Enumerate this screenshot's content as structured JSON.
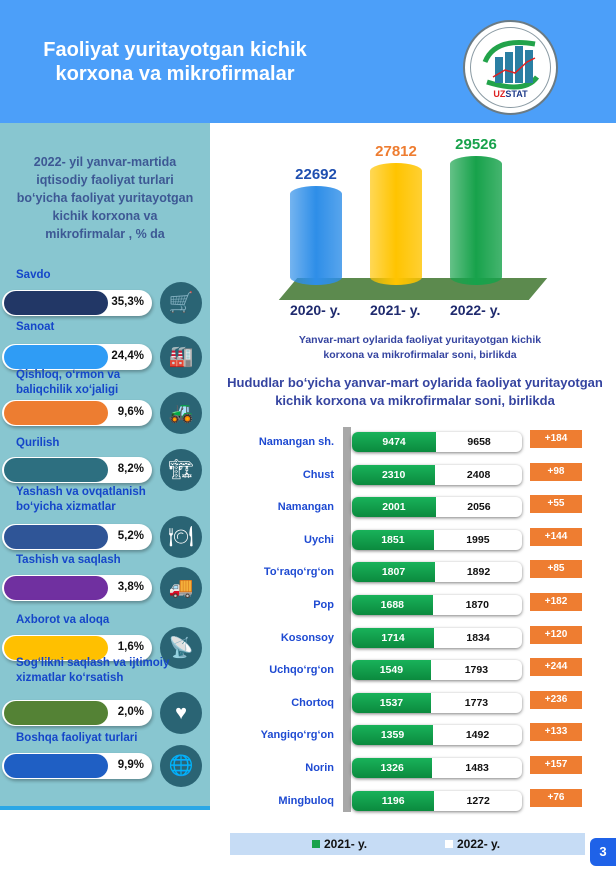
{
  "header": {
    "title": "Faoliyat  yuritayotgan kichik korxona va mikrofirmalar",
    "logo_top": "NAMANGAN VILOYATI",
    "logo_brand": "UZSTAT",
    "logo_bottom": "STATISTIKA BOSHQARMASI"
  },
  "left": {
    "title": "2022- yil yanvar-martida iqtisodiy faoliyat turlari bo‘yicha faoliyat yuritayotgan kichik korxona va mikrofirmalar , % da",
    "items": [
      {
        "label": "Savdo",
        "value": "35,3%",
        "color": "#223766",
        "icon": "shopping-cart-icon",
        "glyph": "🛒"
      },
      {
        "label": "Sanoat",
        "value": "24,4%",
        "color": "#2f9cf5",
        "icon": "factory-icon",
        "glyph": "🏭"
      },
      {
        "label": "Qishloq, o‘rmon va baliqchilik xo‘jaligi",
        "value": "9,6%",
        "color": "#ed7d31",
        "icon": "tractor-icon",
        "glyph": "🚜"
      },
      {
        "label": "Qurilish",
        "value": "8,2%",
        "color": "#2d6f80",
        "icon": "crane-building-icon",
        "glyph": "🏗"
      },
      {
        "label": "Yashash va ovqatlanish bo‘yicha xizmatlar",
        "value": "5,2%",
        "color": "#2f5597",
        "icon": "plate-cutlery-icon",
        "glyph": "🍽"
      },
      {
        "label": "Tashish va saqlash",
        "value": "3,8%",
        "color": "#7030a0",
        "icon": "delivery-truck-icon",
        "glyph": "🚚"
      },
      {
        "label": "Axborot va aloqa",
        "value": "1,6%",
        "color": "#ffc000",
        "icon": "antenna-tower-icon",
        "glyph": "📡"
      },
      {
        "label": "Sog‘likni saqlash va ijtimoiy xizmatlar ko‘rsatish",
        "value": "2,0%",
        "color": "#548235",
        "icon": "heart-medical-icon",
        "glyph": "♥"
      },
      {
        "label": "Boshqa faoliyat turlari",
        "value": "9,9%",
        "color": "#1f5fc4",
        "icon": "globe-arrow-icon",
        "glyph": "🌐"
      }
    ]
  },
  "chart_data": [
    {
      "type": "bar",
      "title": "Yanvar-mart oylarida faoliyat yuritayotgan kichik korxona va mikrofirmalar soni, birlikda",
      "categories": [
        "2020- y.",
        "2021- y.",
        "2022- y."
      ],
      "values": [
        22692,
        27812,
        29526
      ],
      "labels": [
        "22692",
        "27812",
        "29526"
      ],
      "colors": [
        "#2e8ee8",
        "#ffc400",
        "#17a24b"
      ],
      "label_colors": [
        "#1f4fb0",
        "#ee7d31",
        "#17a24b"
      ]
    },
    {
      "type": "bar",
      "orientation": "horizontal",
      "stacked": true,
      "title": "Hududlar bo‘yicha yanvar-mart oylarida faoliyat yuritayotgan kichik korxona va mikrofirmalar soni, birlikda",
      "categories": [
        "Namangan sh.",
        "Chust",
        "Namangan",
        "Uychi",
        "To‘raqo‘rg‘on",
        "Pop",
        "Kosonsoy",
        "Uchqo‘rg‘on",
        "Chortoq",
        "Yangiqo‘rg‘on",
        "Norin",
        "Mingbuloq"
      ],
      "series": [
        {
          "name": "2021- y.",
          "values": [
            9474,
            2310,
            2001,
            1851,
            1807,
            1688,
            1714,
            1549,
            1537,
            1359,
            1326,
            1196
          ]
        },
        {
          "name": "2022- y.",
          "values": [
            9658,
            2408,
            2056,
            1995,
            1892,
            1870,
            1834,
            1793,
            1773,
            1492,
            1483,
            1272
          ]
        }
      ],
      "differences": [
        "+184",
        "+98",
        "+55",
        "+144",
        "+85",
        "+182",
        "+120",
        "+244",
        "+236",
        "+133",
        "+157",
        "+76"
      ],
      "legend": [
        "2021- y.",
        "2022- y."
      ],
      "legend_position": "bottom"
    }
  ],
  "page_number": "3"
}
